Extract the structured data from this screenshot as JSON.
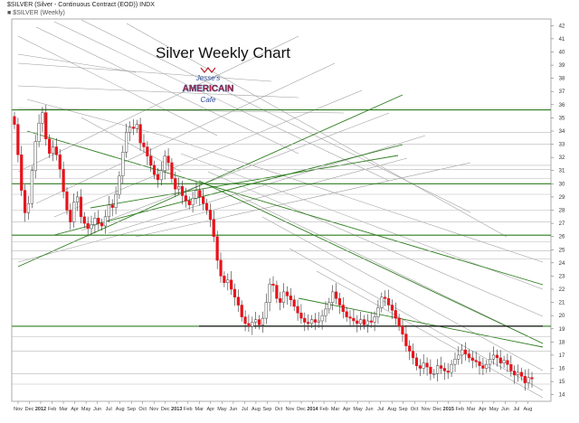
{
  "header": {
    "symbol_line": "$SILVER (Silver - Continuous Contract (EOD)) INDX",
    "legend_line": "■ $SILVER (Weekly)"
  },
  "chart_title": "Silver Weekly Chart",
  "logo": {
    "line1": "Jesse's",
    "line2": "AMERICAIN",
    "line3": "Cafe"
  },
  "colors": {
    "up_candle": "#ffffff",
    "down_candle": "#e8131b",
    "support_resistance": "#2e7d1f",
    "fan_lines": "#9a9a9a",
    "logo_blue": "#2a4a9a",
    "logo_red": "#c0202a"
  },
  "chart_data": {
    "type": "candlestick",
    "title": "Silver Weekly Chart",
    "ylim": [
      13.5,
      42.5
    ],
    "y_ticks": [
      14,
      15,
      16,
      17,
      18,
      19,
      20,
      21,
      22,
      23,
      24,
      25,
      26,
      27,
      28,
      29,
      30,
      31,
      32,
      33,
      34,
      35,
      36,
      37,
      38,
      39,
      40,
      41,
      42
    ],
    "x_labels": [
      "Nov",
      "Dec",
      "2012",
      "Feb",
      "Mar",
      "Apr",
      "May",
      "Jun",
      "Jul",
      "Aug",
      "Sep",
      "Oct",
      "Nov",
      "Dec",
      "2013",
      "Feb",
      "Mar",
      "Apr",
      "May",
      "Jun",
      "Jul",
      "Aug",
      "Sep",
      "Oct",
      "Nov",
      "Dec",
      "2014",
      "Feb",
      "Mar",
      "Apr",
      "May",
      "Jun",
      "Jul",
      "Aug",
      "Sep",
      "Oct",
      "Nov",
      "Dec",
      "2015",
      "Feb",
      "Mar",
      "Apr",
      "May",
      "Jun",
      "Jul",
      "Aug"
    ],
    "x_bold": [
      "2012",
      "2013",
      "2014",
      "2015"
    ],
    "closes": [
      34.5,
      32.2,
      29.5,
      27.8,
      28.5,
      31.0,
      33.2,
      34.6,
      35.4,
      33.4,
      32.3,
      32.8,
      32.2,
      31.1,
      29.4,
      28.0,
      27.1,
      28.6,
      29.0,
      27.5,
      27.0,
      26.6,
      26.9,
      27.4,
      27.0,
      26.8,
      27.5,
      28.4,
      28.2,
      29.2,
      30.6,
      32.4,
      33.9,
      34.3,
      34.2,
      34.5,
      33.1,
      32.8,
      32.1,
      31.4,
      30.7,
      30.3,
      31.0,
      32.1,
      31.6,
      30.4,
      29.6,
      29.8,
      29.1,
      28.7,
      28.4,
      28.9,
      29.5,
      29.0,
      28.5,
      28.0,
      27.3,
      26.0,
      24.2,
      23.0,
      22.5,
      22.7,
      22.0,
      21.4,
      20.8,
      19.9,
      19.4,
      19.2,
      19.5,
      19.7,
      19.3,
      19.8,
      21.0,
      22.4,
      22.3,
      21.3,
      21.0,
      21.8,
      21.5,
      21.2,
      20.7,
      20.2,
      19.8,
      19.5,
      19.4,
      19.7,
      19.5,
      19.6,
      20.0,
      20.5,
      21.0,
      21.8,
      21.3,
      20.8,
      20.3,
      19.9,
      19.8,
      19.6,
      19.4,
      19.7,
      19.3,
      19.6,
      19.5,
      19.9,
      20.6,
      21.4,
      21.3,
      20.8,
      20.4,
      19.8,
      19.2,
      18.6,
      17.7,
      17.3,
      16.8,
      16.2,
      16.0,
      16.4,
      16.1,
      15.6,
      15.6,
      16.2,
      16.0,
      15.8,
      15.7,
      16.3,
      16.7,
      17.0,
      17.4,
      17.1,
      16.8,
      16.6,
      16.5,
      16.2,
      16.0,
      16.3,
      16.7,
      17.0,
      16.8,
      16.4,
      16.6,
      16.3,
      15.8,
      15.5,
      15.7,
      15.4,
      14.9,
      15.3,
      15.2
    ],
    "horizontal_levels_green": [
      35.6,
      30.0,
      26.1,
      19.2
    ],
    "horizontal_levels_gray": [
      33.9,
      33.0,
      31.4,
      31.1,
      30.4,
      29.2,
      28.0,
      27.1,
      25.6,
      24.9,
      24.3,
      18.4,
      17.3,
      15.6,
      14.8
    ]
  }
}
